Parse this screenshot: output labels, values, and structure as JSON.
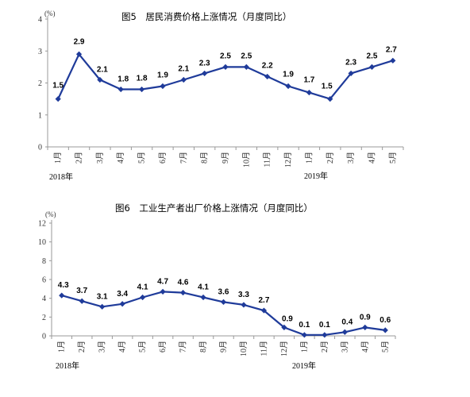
{
  "chart_data": [
    {
      "type": "line",
      "title": "图5　居民消费价格上涨情况（月度同比）",
      "unit": "(%)",
      "categories": [
        "1月",
        "2月",
        "3月",
        "4月",
        "5月",
        "6月",
        "7月",
        "8月",
        "9月",
        "10月",
        "11月",
        "12月",
        "1月",
        "2月",
        "3月",
        "4月",
        "5月"
      ],
      "year_labels": [
        "2018年",
        "2019年"
      ],
      "series": [
        {
          "values": [
            1.5,
            2.9,
            2.1,
            1.8,
            1.8,
            1.9,
            2.1,
            2.3,
            2.5,
            2.5,
            2.2,
            1.9,
            1.7,
            1.5,
            2.3,
            2.5,
            2.7
          ]
        }
      ],
      "ylim": [
        0,
        4
      ],
      "yticks": [
        "0",
        "1",
        "2",
        "3",
        "4"
      ],
      "color": "#1f3b9a",
      "grid": false
    },
    {
      "type": "line",
      "title": "图6　工业生产者出厂价格上涨情况（月度同比）",
      "unit": "(%)",
      "categories": [
        "1月",
        "2月",
        "3月",
        "4月",
        "5月",
        "6月",
        "7月",
        "8月",
        "9月",
        "10月",
        "11月",
        "12月",
        "1月",
        "2月",
        "3月",
        "4月",
        "5月"
      ],
      "year_labels": [
        "2018年",
        "2019年"
      ],
      "series": [
        {
          "values": [
            4.3,
            3.7,
            3.1,
            3.4,
            4.1,
            4.7,
            4.6,
            4.1,
            3.6,
            3.3,
            2.7,
            0.9,
            0.1,
            0.1,
            0.4,
            0.9,
            0.6
          ]
        }
      ],
      "ylim": [
        0,
        12
      ],
      "yticks": [
        "0",
        "2",
        "4",
        "6",
        "8",
        "10",
        "12"
      ],
      "color": "#1f3b9a",
      "grid": false
    }
  ]
}
